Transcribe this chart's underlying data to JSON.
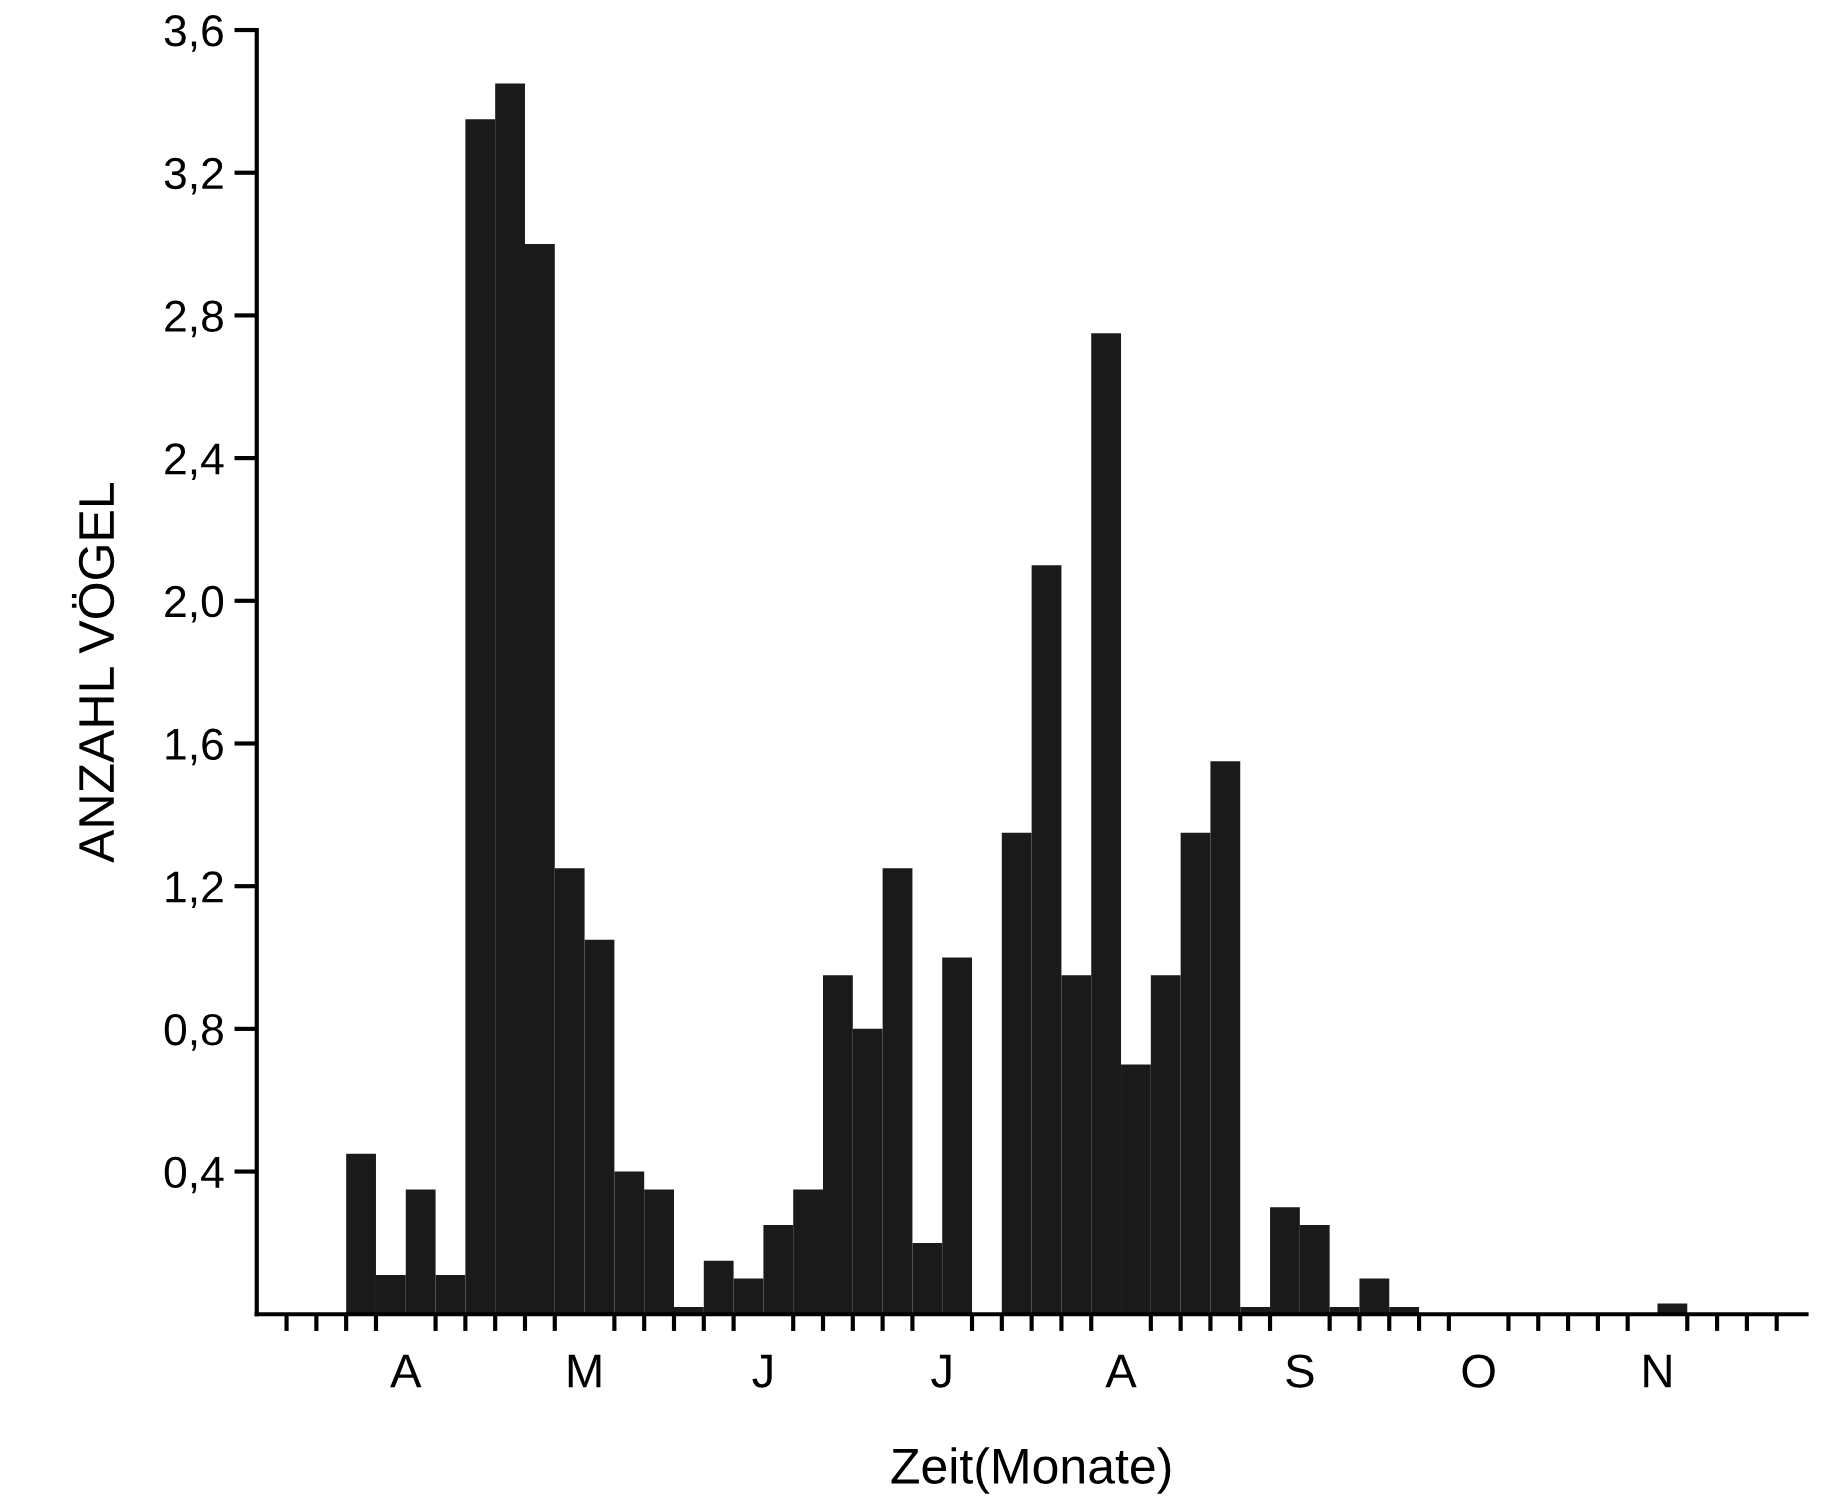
{
  "chart_data": {
    "type": "bar",
    "xlabel": "Zeit(Monate)",
    "ylabel": "ANZAHL VÖGEL",
    "color": "#1a1a1a",
    "categories": [
      null,
      null,
      null,
      null,
      null,
      "A",
      null,
      null,
      null,
      null,
      null,
      "M",
      null,
      null,
      null,
      null,
      null,
      "J",
      null,
      null,
      null,
      null,
      null,
      "J",
      null,
      null,
      null,
      null,
      null,
      "A",
      null,
      null,
      null,
      null,
      null,
      "S",
      null,
      null,
      null,
      null,
      null,
      "O",
      null,
      null,
      null,
      null,
      null,
      "N",
      null,
      null,
      null,
      null
    ],
    "values": [
      null,
      null,
      0,
      0.45,
      0.11,
      0.35,
      0.11,
      3.35,
      3.45,
      3.0,
      1.25,
      1.05,
      0.4,
      0.35,
      0.02,
      0.15,
      0.1,
      0.25,
      0.35,
      0.95,
      0.8,
      1.25,
      0.2,
      1.0,
      0,
      1.35,
      2.1,
      0.95,
      2.75,
      0.7,
      0.95,
      1.35,
      1.55,
      0.02,
      0.3,
      0.25,
      0.02,
      0.1,
      0.02,
      0,
      0,
      0,
      0,
      0,
      0,
      0,
      0,
      0.03,
      0,
      null,
      null,
      null
    ],
    "ylim": [
      0,
      3.6
    ],
    "yticks": [
      {
        "value": 0.4,
        "label": "0,4"
      },
      {
        "value": 0.8,
        "label": "0,8"
      },
      {
        "value": 1.2,
        "label": "1,2"
      },
      {
        "value": 1.6,
        "label": "1,6"
      },
      {
        "value": 2.0,
        "label": "2,0"
      },
      {
        "value": 2.4,
        "label": "2,4"
      },
      {
        "value": 2.8,
        "label": "2,8"
      },
      {
        "value": 3.2,
        "label": "3,2"
      },
      {
        "value": 3.6,
        "label": "3,6"
      }
    ],
    "grid": false,
    "legend": false
  }
}
